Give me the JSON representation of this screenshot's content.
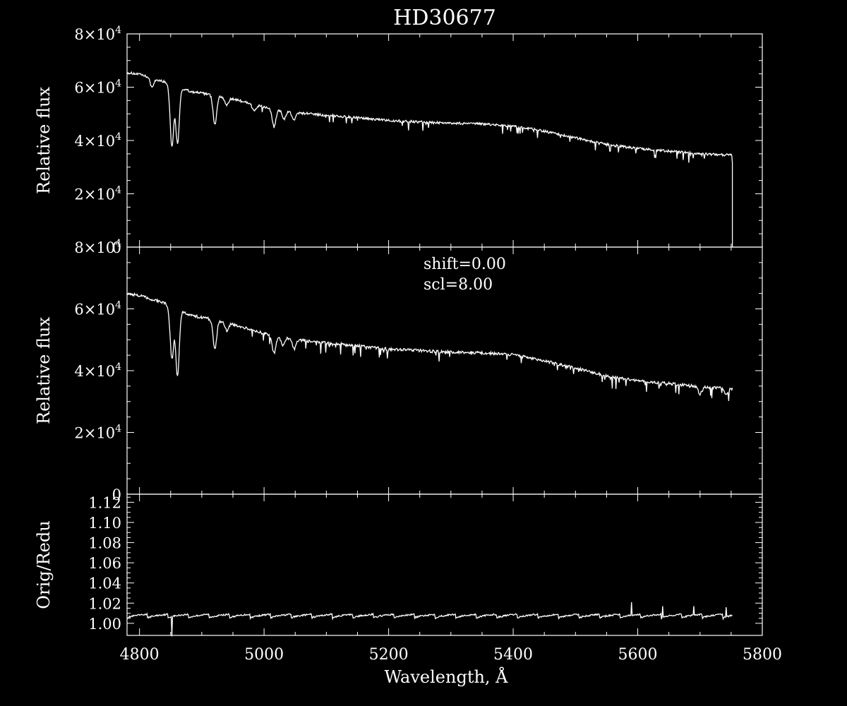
{
  "colors": {
    "background": "#000000",
    "foreground": "#ffffff"
  },
  "chart_data": [
    {
      "type": "line",
      "title": "HD30677",
      "xlabel": "",
      "ylabel": "Relative flux",
      "xlim": [
        4780,
        5800
      ],
      "ylim": [
        0,
        80000
      ],
      "x_ticks": [
        4800,
        5000,
        5200,
        5400,
        5600,
        5800
      ],
      "y_ticks": [
        0,
        20000,
        40000,
        60000,
        80000
      ],
      "y_tick_labels": [
        {
          "base": "0",
          "exp": ""
        },
        {
          "base": "2×10",
          "exp": "4"
        },
        {
          "base": "4×10",
          "exp": "4"
        },
        {
          "base": "6×10",
          "exp": "4"
        },
        {
          "base": "8×10",
          "exp": "4"
        }
      ],
      "series": [
        {
          "continuum": {
            "x": [
              4780,
              4800,
              4840,
              4880,
              4920,
              4960,
              5000,
              5050,
              5100,
              5150,
              5200,
              5250,
              5300,
              5350,
              5400,
              5450,
              5500,
              5550,
              5600,
              5650,
              5700,
              5752
            ],
            "y": [
              65500,
              64800,
              62000,
              58500,
              57000,
              55000,
              52500,
              50500,
              49500,
              48500,
              47500,
              47000,
              46500,
              46200,
              45500,
              43500,
              41000,
              38500,
              37000,
              36000,
              35000,
              34500
            ]
          },
          "absorption_lines": [
            {
              "x": 4852,
              "y": 38000
            },
            {
              "x": 4861,
              "y": 39000
            },
            {
              "x": 4921,
              "y": 46000
            },
            {
              "x": 5016,
              "y": 45000
            },
            {
              "x": 4820,
              "y": 60000
            },
            {
              "x": 4940,
              "y": 53000
            },
            {
              "x": 4984,
              "y": 51000
            },
            {
              "x": 5032,
              "y": 48000
            },
            {
              "x": 5048,
              "y": 47500
            }
          ],
          "end_drop": {
            "x": 5752,
            "y": 0
          }
        }
      ]
    },
    {
      "type": "line",
      "title": "",
      "xlabel": "",
      "ylabel": "Relative flux",
      "annotations": [
        "shift=0.00",
        "scl=8.00"
      ],
      "xlim": [
        4780,
        5800
      ],
      "ylim": [
        0,
        80000
      ],
      "x_ticks": [
        4800,
        5000,
        5200,
        5400,
        5600,
        5800
      ],
      "y_ticks": [
        0,
        20000,
        40000,
        60000,
        80000
      ],
      "y_tick_labels": [
        {
          "base": "0",
          "exp": ""
        },
        {
          "base": "2×10",
          "exp": "4"
        },
        {
          "base": "4×10",
          "exp": "4"
        },
        {
          "base": "6×10",
          "exp": "4"
        },
        {
          "base": "8×10",
          "exp": "4"
        }
      ],
      "series": [
        {
          "continuum": {
            "x": [
              4780,
              4800,
              4840,
              4880,
              4920,
              4960,
              5000,
              5050,
              5100,
              5150,
              5200,
              5250,
              5300,
              5350,
              5400,
              5450,
              5500,
              5550,
              5600,
              5650,
              5700,
              5752
            ],
            "y": [
              65000,
              64300,
              61800,
              58000,
              56500,
              54500,
              52000,
              50000,
              49000,
              48000,
              47000,
              46500,
              46000,
              45800,
              45200,
              43200,
              40800,
              38300,
              36800,
              35800,
              34800,
              34200
            ]
          },
          "absorption_lines": [
            {
              "x": 4852,
              "y": 44000
            },
            {
              "x": 4861,
              "y": 38000
            },
            {
              "x": 4921,
              "y": 47000
            },
            {
              "x": 5016,
              "y": 45500
            },
            {
              "x": 4940,
              "y": 53000
            },
            {
              "x": 5030,
              "y": 48000
            },
            {
              "x": 5048,
              "y": 47500
            },
            {
              "x": 5700,
              "y": 32500
            },
            {
              "x": 5742,
              "y": 32000
            }
          ]
        }
      ]
    },
    {
      "type": "line",
      "title": "",
      "xlabel": "Wavelength, Å",
      "ylabel": "Orig/Redu",
      "xlim": [
        4780,
        5800
      ],
      "ylim": [
        0.988,
        1.128
      ],
      "x_ticks": [
        4800,
        5000,
        5200,
        5400,
        5600,
        5800
      ],
      "x_tick_labels": [
        "4800",
        "5000",
        "5200",
        "5400",
        "5600",
        "5800"
      ],
      "y_ticks": [
        1.0,
        1.02,
        1.04,
        1.06,
        1.08,
        1.1,
        1.12
      ],
      "y_tick_labels": [
        "1.00",
        "1.02",
        "1.04",
        "1.06",
        "1.08",
        "1.10",
        "1.12"
      ],
      "series": [
        {
          "segment_width": 33,
          "segment_start": 4780,
          "segment_end": 5752,
          "low": 1.005,
          "high": 1.009,
          "spikes": [
            {
              "x": 4852,
              "y": 0.987
            },
            {
              "x": 5590,
              "y": 1.021
            },
            {
              "x": 5640,
              "y": 1.017
            },
            {
              "x": 5690,
              "y": 1.017
            },
            {
              "x": 5742,
              "y": 1.016
            }
          ]
        }
      ]
    }
  ]
}
